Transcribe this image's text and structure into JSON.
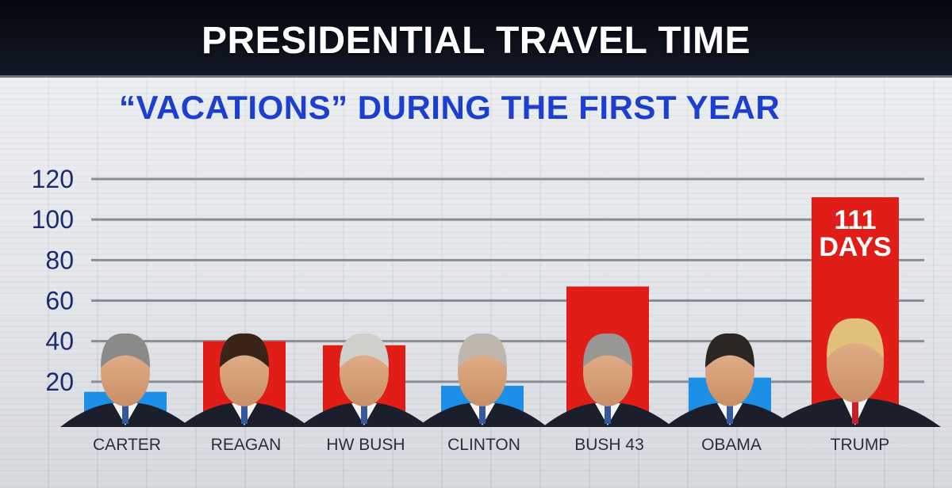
{
  "header": {
    "title": "PRESIDENTIAL TRAVEL TIME",
    "subtitle": "“VACATIONS” DURING THE FIRST YEAR"
  },
  "colors": {
    "bar_red": "#e11d17",
    "bar_blue": "#1e8fe6",
    "grid": "#8a8d96",
    "axis_text": "#1c2a6e",
    "subtitle": "#1d3fd0"
  },
  "chart_data": {
    "type": "bar",
    "title": "PRESIDENTIAL TRAVEL TIME",
    "subtitle": "“VACATIONS” DURING THE FIRST YEAR",
    "xlabel": "",
    "ylabel": "",
    "ylim": [
      0,
      120
    ],
    "yticks": [
      20,
      40,
      60,
      80,
      100,
      120
    ],
    "grid": true,
    "categories": [
      "CARTER",
      "REAGAN",
      "HW BUSH",
      "CLINTON",
      "BUSH 43",
      "OBAMA",
      "TRUMP"
    ],
    "values": [
      15,
      40,
      38,
      18,
      67,
      22,
      111
    ],
    "bar_colors": [
      "blue",
      "red",
      "red",
      "blue",
      "red",
      "blue",
      "red"
    ],
    "data_labels": [
      {
        "category": "TRUMP",
        "lines": [
          "111",
          "DAYS"
        ]
      }
    ]
  }
}
